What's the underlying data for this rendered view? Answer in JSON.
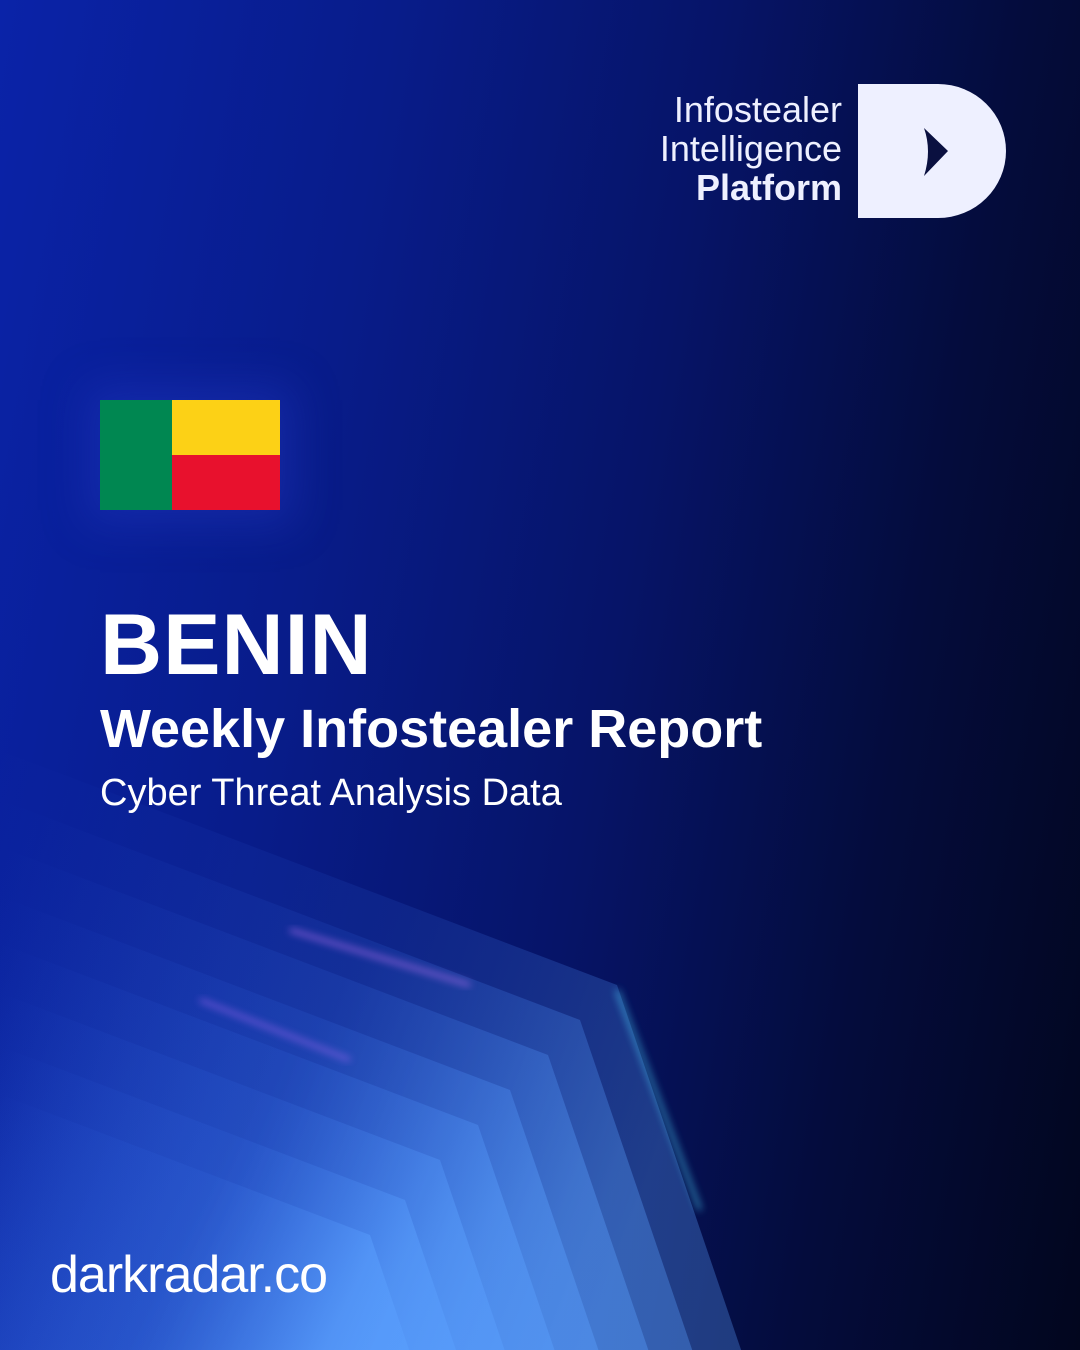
{
  "brand": {
    "line1": "Infostealer",
    "line2": "Intelligence",
    "line3": "Platform"
  },
  "flag": {
    "country": "Benin",
    "colors": {
      "green": "#008751",
      "yellow": "#fcd116",
      "red": "#e8112d"
    }
  },
  "hero": {
    "country": "BENIN",
    "title": "Weekly Infostealer Report",
    "subtitle": "Cyber Threat Analysis Data"
  },
  "footer": {
    "site": "darkradar.co"
  },
  "colors": {
    "accent": "#1a3fd8",
    "logo": "#eef0ff"
  }
}
